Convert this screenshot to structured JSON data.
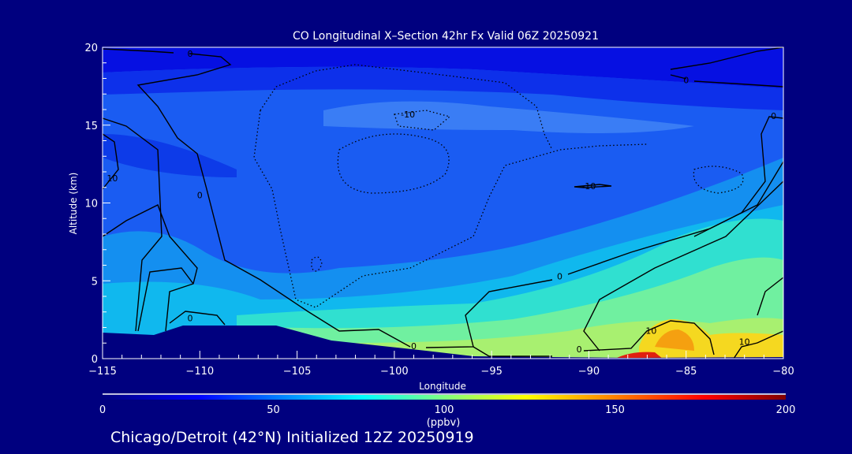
{
  "chart_data": {
    "type": "heatmap",
    "subtype": "filled-contour cross-section",
    "title": "CO Longitudinal X–Section 42hr  Fx Valid 06Z 20250921",
    "xlabel": "Longitude",
    "ylabel": "Altitude (km)",
    "xlim": [
      -115,
      -80
    ],
    "ylim": [
      0,
      20
    ],
    "xticks": [
      -115,
      -110,
      -105,
      -100,
      -95,
      -90,
      -85,
      -80
    ],
    "xtick_labels": [
      "−115",
      "−110",
      "−105",
      "−100",
      "−95",
      "−90",
      "−85",
      "−80"
    ],
    "yticks": [
      0,
      5,
      10,
      15,
      20
    ],
    "ytick_labels": [
      "0",
      "5",
      "10",
      "15",
      "20"
    ],
    "contour_labels": [
      {
        "text": "0",
        "lon": -110.5,
        "alt": 19.6
      },
      {
        "text": "-10",
        "lon": -99.3,
        "alt": 15.7
      },
      {
        "text": "0",
        "lon": -110.0,
        "alt": 10.5
      },
      {
        "text": "10",
        "lon": -114.5,
        "alt": 11.6
      },
      {
        "text": "-10",
        "lon": -90.0,
        "alt": 11.1
      },
      {
        "text": "0",
        "lon": -85.0,
        "alt": 17.9
      },
      {
        "text": "0",
        "lon": -80.5,
        "alt": 15.6
      },
      {
        "text": "0",
        "lon": -91.5,
        "alt": 5.3
      },
      {
        "text": "0",
        "lon": -110.5,
        "alt": 2.6
      },
      {
        "text": "0",
        "lon": -99.0,
        "alt": 0.8
      },
      {
        "text": "0",
        "lon": -90.5,
        "alt": 0.6
      },
      {
        "text": "10",
        "lon": -86.8,
        "alt": 1.8
      },
      {
        "text": "10",
        "lon": -82.0,
        "alt": 1.1
      }
    ],
    "colorbar": {
      "label": "(ppbv)",
      "range": [
        0,
        200
      ],
      "ticks": [
        0,
        50,
        100,
        150,
        200
      ],
      "tick_labels": [
        "0",
        "50",
        "100",
        "150",
        "200"
      ],
      "colors": [
        "#00007f",
        "#0000ff",
        "#00ffff",
        "#80ff80",
        "#ffff00",
        "#ff8000",
        "#ff0000",
        "#800000"
      ]
    },
    "grid": false
  },
  "footer": "Chicago/Detroit (42°N) Initialized 12Z 20250919"
}
